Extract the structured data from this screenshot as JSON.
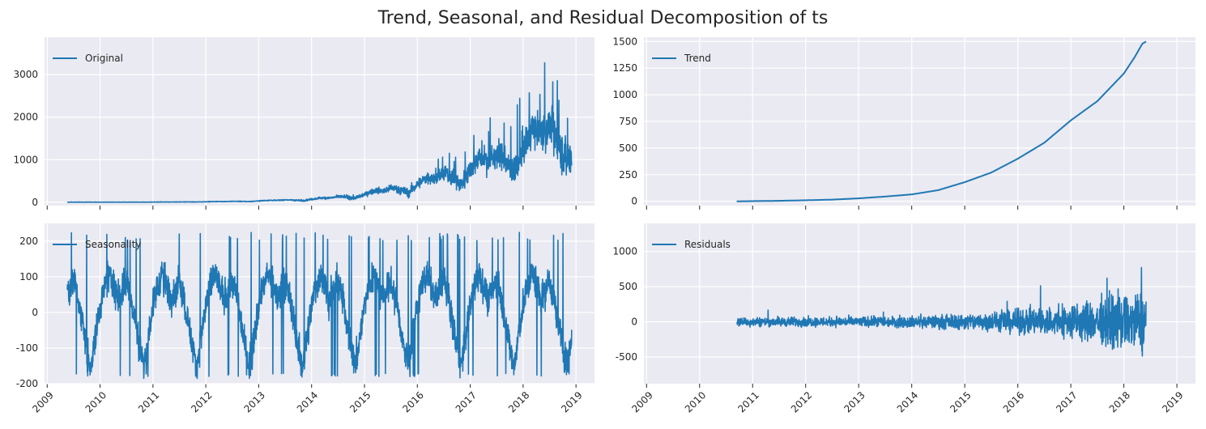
{
  "title": "Trend, Seasonal, and Residual Decomposition of ts",
  "colors": {
    "line": "#1f77b4",
    "panel_bg": "#eaeaf2",
    "grid": "#ffffff"
  },
  "chart_data": [
    {
      "id": "original",
      "type": "line",
      "legend": "Original",
      "xlim": [
        2008.95,
        2019.35
      ],
      "ylim": [
        -80,
        3880
      ],
      "yticks": [
        0,
        1000,
        2000,
        3000
      ],
      "xticks": [
        "2009",
        "2010",
        "2011",
        "2012",
        "2013",
        "2014",
        "2015",
        "2016",
        "2017",
        "2018",
        "2019"
      ],
      "show_xtick_labels": false,
      "legend_position": "top-left",
      "x_range": [
        2009.38,
        2018.92
      ]
    },
    {
      "id": "trend",
      "type": "line",
      "legend": "Trend",
      "xlim": [
        2008.95,
        2019.35
      ],
      "ylim": [
        -40,
        1540
      ],
      "yticks": [
        0,
        250,
        500,
        750,
        1000,
        1250,
        1500
      ],
      "xticks": [
        "2009",
        "2010",
        "2011",
        "2012",
        "2013",
        "2014",
        "2015",
        "2016",
        "2017",
        "2018",
        "2019"
      ],
      "show_xtick_labels": false,
      "legend_position": "top-left",
      "x_range": [
        2010.7,
        2018.42
      ],
      "points": [
        [
          2010.7,
          0
        ],
        [
          2011.0,
          2
        ],
        [
          2011.5,
          5
        ],
        [
          2012.0,
          10
        ],
        [
          2012.5,
          16
        ],
        [
          2013.0,
          28
        ],
        [
          2013.5,
          45
        ],
        [
          2014.0,
          65
        ],
        [
          2014.5,
          105
        ],
        [
          2015.0,
          180
        ],
        [
          2015.5,
          270
        ],
        [
          2016.0,
          400
        ],
        [
          2016.5,
          550
        ],
        [
          2017.0,
          760
        ],
        [
          2017.5,
          940
        ],
        [
          2018.0,
          1200
        ],
        [
          2018.2,
          1350
        ],
        [
          2018.35,
          1480
        ],
        [
          2018.42,
          1500
        ]
      ]
    },
    {
      "id": "seasonality",
      "type": "line",
      "legend": "Seasonality",
      "xlim": [
        2008.95,
        2019.35
      ],
      "ylim": [
        -200,
        250
      ],
      "yticks": [
        -200,
        -100,
        0,
        100,
        200
      ],
      "xticks": [
        "2009",
        "2010",
        "2011",
        "2012",
        "2013",
        "2014",
        "2015",
        "2016",
        "2017",
        "2018",
        "2019"
      ],
      "show_xtick_labels": true,
      "legend_position": "top-left",
      "x_range": [
        2009.38,
        2018.92
      ],
      "yearly_pattern": [
        [
          0.0,
          20
        ],
        [
          0.08,
          70
        ],
        [
          0.17,
          110
        ],
        [
          0.25,
          80
        ],
        [
          0.33,
          40
        ],
        [
          0.42,
          60
        ],
        [
          0.5,
          90
        ],
        [
          0.58,
          40
        ],
        [
          0.67,
          -30
        ],
        [
          0.75,
          -100
        ],
        [
          0.83,
          -150
        ],
        [
          0.92,
          -60
        ],
        [
          1.0,
          20
        ]
      ]
    },
    {
      "id": "residuals",
      "type": "line",
      "legend": "Residuals",
      "xlim": [
        2008.95,
        2019.35
      ],
      "ylim": [
        -880,
        1400
      ],
      "yticks": [
        -500,
        0,
        500,
        1000
      ],
      "xticks": [
        "2009",
        "2010",
        "2011",
        "2012",
        "2013",
        "2014",
        "2015",
        "2016",
        "2017",
        "2018",
        "2019"
      ],
      "show_xtick_labels": true,
      "legend_position": "top-left",
      "x_range": [
        2010.7,
        2018.42
      ]
    }
  ]
}
